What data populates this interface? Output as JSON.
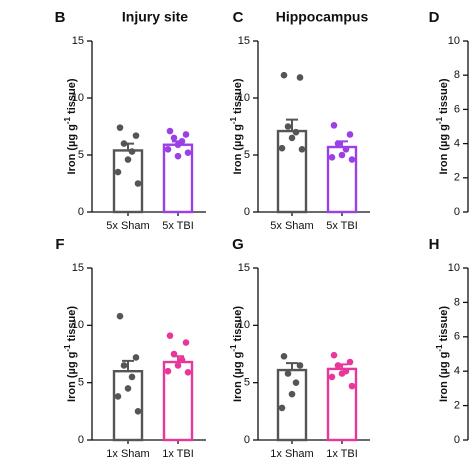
{
  "chart_data": [
    {
      "type": "bar",
      "label": "B",
      "title": "Injury site",
      "ylabel": {
        "pre": "Iron (µg g",
        "sup": "-1",
        "post": " tissue)"
      },
      "categories": [
        "5x Sham",
        "5x TBI"
      ],
      "values": [
        5.4,
        5.9
      ],
      "errors": [
        0.6,
        0.3
      ],
      "colors": [
        "#555555",
        "#9b3fe6"
      ],
      "points": [
        [
          7.4,
          6.7,
          6.0,
          5.3,
          4.6,
          3.5,
          2.5
        ],
        [
          7.1,
          6.8,
          6.5,
          6.2,
          5.9,
          5.5,
          5.2,
          4.9
        ]
      ],
      "ylim": [
        0,
        15
      ],
      "yticks": [
        0,
        5,
        10,
        15
      ]
    },
    {
      "type": "bar",
      "label": "C",
      "title": "Hippocampus",
      "ylabel": {
        "pre": "Iron (µg g",
        "sup": "-1",
        "post": " tissue)"
      },
      "categories": [
        "5x Sham",
        "5x TBI"
      ],
      "values": [
        7.1,
        5.7
      ],
      "errors": [
        1.0,
        0.5
      ],
      "colors": [
        "#555555",
        "#9b3fe6"
      ],
      "points": [
        [
          12.0,
          11.8,
          7.5,
          7.0,
          6.5,
          5.6,
          5.5
        ],
        [
          7.6,
          6.8,
          6.0,
          5.5,
          5.0,
          4.8,
          4.6
        ]
      ],
      "ylim": [
        0,
        15
      ],
      "yticks": [
        0,
        5,
        10,
        15
      ]
    },
    {
      "type": "bar",
      "label": "D",
      "ylabel": {
        "pre": "Iron (µg g",
        "sup": "-1",
        "post": " tissue)"
      },
      "ylim": [
        0,
        10
      ],
      "yticks": [
        0,
        2,
        4,
        6,
        8,
        10
      ]
    },
    {
      "type": "bar",
      "label": "F",
      "ylabel": {
        "pre": "Iron (µg g",
        "sup": "-1",
        "post": " tissue)"
      },
      "categories": [
        "1x Sham",
        "1x TBI"
      ],
      "values": [
        6.0,
        6.8
      ],
      "errors": [
        0.9,
        0.5
      ],
      "colors": [
        "#555555",
        "#e8379a"
      ],
      "points": [
        [
          10.8,
          7.2,
          6.5,
          5.5,
          4.5,
          3.8,
          2.5
        ],
        [
          9.1,
          8.5,
          7.5,
          7.0,
          6.5,
          6.0,
          5.9
        ]
      ],
      "ylim": [
        0,
        15
      ],
      "yticks": [
        0,
        5,
        10,
        15
      ]
    },
    {
      "type": "bar",
      "label": "G",
      "ylabel": {
        "pre": "Iron (µg g",
        "sup": "-1",
        "post": " tissue)"
      },
      "categories": [
        "1x Sham",
        "1x TBI"
      ],
      "values": [
        6.1,
        6.2
      ],
      "errors": [
        0.6,
        0.4
      ],
      "colors": [
        "#555555",
        "#e8379a"
      ],
      "points": [
        [
          7.3,
          6.5,
          5.8,
          5.0,
          4.0,
          2.8
        ],
        [
          7.4,
          6.8,
          6.5,
          6.0,
          5.8,
          5.5,
          4.7
        ]
      ],
      "ylim": [
        0,
        15
      ],
      "yticks": [
        0,
        5,
        10,
        15
      ]
    },
    {
      "type": "bar",
      "label": "H",
      "ylabel": {
        "pre": "Iron (µg g",
        "sup": "-1",
        "post": " tissue)"
      },
      "ylim": [
        0,
        10
      ],
      "yticks": [
        0,
        2,
        4,
        6,
        8,
        10
      ]
    }
  ]
}
